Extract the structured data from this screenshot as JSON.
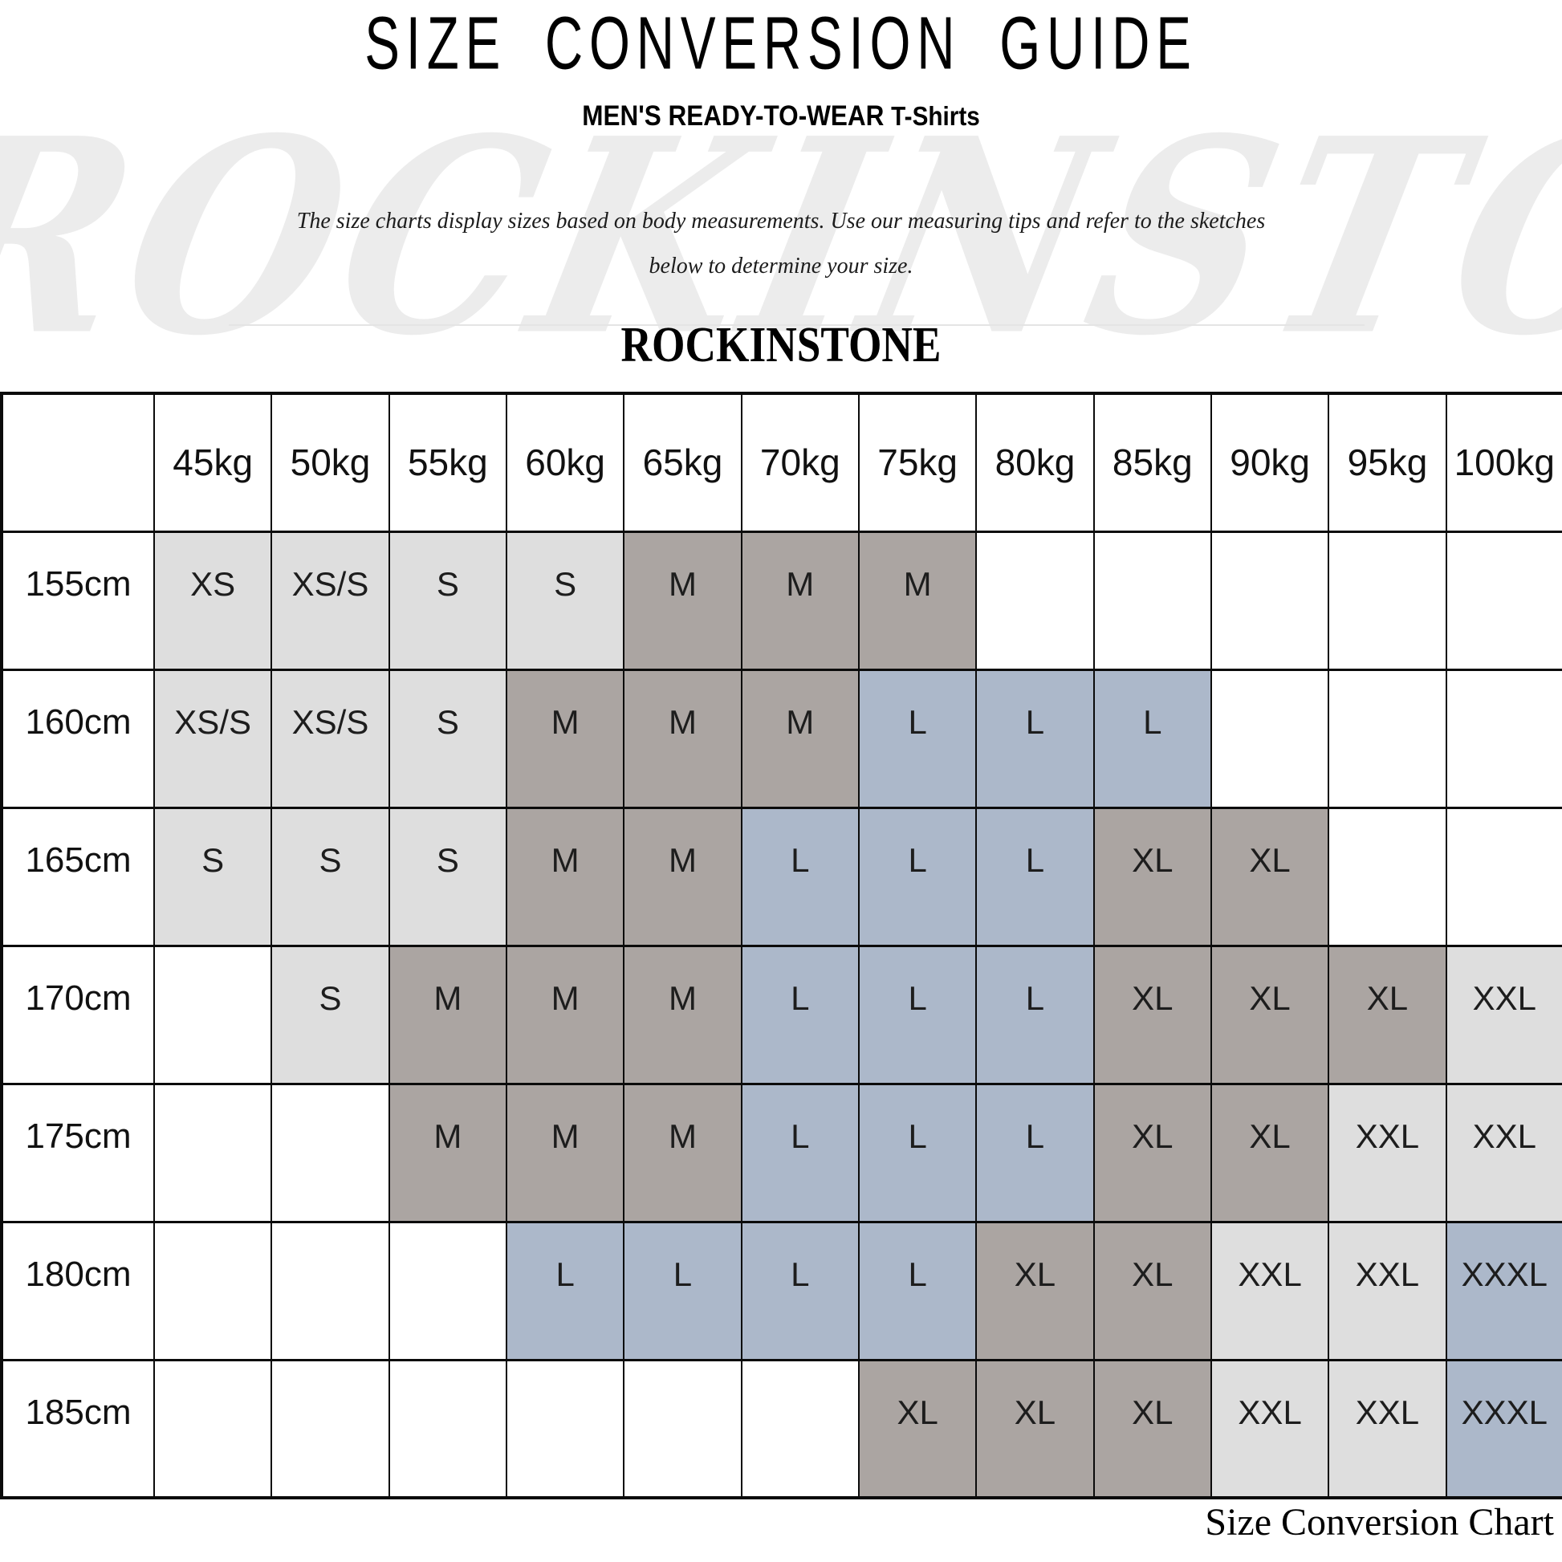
{
  "title": "SIZE CONVERSION GUIDE",
  "subtitle": {
    "category": "MEN'S READY-TO-WEAR",
    "product": "T-Shirts"
  },
  "description": {
    "line1": "The size charts display sizes based on body measurements. Use our measuring tips and refer to the sketches",
    "line2": "below to determine your size."
  },
  "brand": "ROCKINSTONE",
  "watermark": "ROCKINSTONE",
  "footer_caption": "Size Conversion Chart",
  "colors": {
    "light_gray": "#dedede",
    "warm_gray": "#aba5a2",
    "blue_gray": "#acb8ca",
    "white": "#ffffff",
    "diagonal_line": "#a3592f"
  },
  "table": {
    "weight_headers": [
      "45kg",
      "50kg",
      "55kg",
      "60kg",
      "65kg",
      "70kg",
      "75kg",
      "80kg",
      "85kg",
      "90kg",
      "95kg",
      "100kg"
    ],
    "rows": [
      {
        "height": "155cm",
        "cells": [
          {
            "size": "XS",
            "fill": "light_gray"
          },
          {
            "size": "XS/S",
            "fill": "light_gray"
          },
          {
            "size": "S",
            "fill": "light_gray"
          },
          {
            "size": "S",
            "fill": "light_gray"
          },
          {
            "size": "M",
            "fill": "warm_gray"
          },
          {
            "size": "M",
            "fill": "warm_gray"
          },
          {
            "size": "M",
            "fill": "warm_gray"
          },
          {
            "size": "",
            "fill": "white"
          },
          {
            "size": "",
            "fill": "white"
          },
          {
            "size": "",
            "fill": "white"
          },
          {
            "size": "",
            "fill": "white"
          },
          {
            "size": "",
            "fill": "white"
          }
        ]
      },
      {
        "height": "160cm",
        "cells": [
          {
            "size": "XS/S",
            "fill": "light_gray"
          },
          {
            "size": "XS/S",
            "fill": "light_gray"
          },
          {
            "size": "S",
            "fill": "light_gray"
          },
          {
            "size": "M",
            "fill": "warm_gray"
          },
          {
            "size": "M",
            "fill": "warm_gray"
          },
          {
            "size": "M",
            "fill": "warm_gray"
          },
          {
            "size": "L",
            "fill": "blue_gray"
          },
          {
            "size": "L",
            "fill": "blue_gray"
          },
          {
            "size": "L",
            "fill": "blue_gray"
          },
          {
            "size": "",
            "fill": "white"
          },
          {
            "size": "",
            "fill": "white"
          },
          {
            "size": "",
            "fill": "white"
          }
        ]
      },
      {
        "height": "165cm",
        "cells": [
          {
            "size": "S",
            "fill": "light_gray"
          },
          {
            "size": "S",
            "fill": "light_gray"
          },
          {
            "size": "S",
            "fill": "light_gray"
          },
          {
            "size": "M",
            "fill": "warm_gray"
          },
          {
            "size": "M",
            "fill": "warm_gray"
          },
          {
            "size": "L",
            "fill": "blue_gray"
          },
          {
            "size": "L",
            "fill": "blue_gray"
          },
          {
            "size": "L",
            "fill": "blue_gray"
          },
          {
            "size": "XL",
            "fill": "warm_gray"
          },
          {
            "size": "XL",
            "fill": "warm_gray"
          },
          {
            "size": "",
            "fill": "white"
          },
          {
            "size": "",
            "fill": "white"
          }
        ]
      },
      {
        "height": "170cm",
        "cells": [
          {
            "size": "",
            "fill": "white"
          },
          {
            "size": "S",
            "fill": "light_gray"
          },
          {
            "size": "M",
            "fill": "warm_gray"
          },
          {
            "size": "M",
            "fill": "warm_gray"
          },
          {
            "size": "M",
            "fill": "warm_gray"
          },
          {
            "size": "L",
            "fill": "blue_gray"
          },
          {
            "size": "L",
            "fill": "blue_gray"
          },
          {
            "size": "L",
            "fill": "blue_gray"
          },
          {
            "size": "XL",
            "fill": "warm_gray"
          },
          {
            "size": "XL",
            "fill": "warm_gray"
          },
          {
            "size": "XL",
            "fill": "warm_gray"
          },
          {
            "size": "XXL",
            "fill": "light_gray"
          }
        ]
      },
      {
        "height": "175cm",
        "cells": [
          {
            "size": "",
            "fill": "white"
          },
          {
            "size": "",
            "fill": "white"
          },
          {
            "size": "M",
            "fill": "warm_gray"
          },
          {
            "size": "M",
            "fill": "warm_gray"
          },
          {
            "size": "M",
            "fill": "warm_gray"
          },
          {
            "size": "L",
            "fill": "blue_gray"
          },
          {
            "size": "L",
            "fill": "blue_gray"
          },
          {
            "size": "L",
            "fill": "blue_gray"
          },
          {
            "size": "XL",
            "fill": "warm_gray"
          },
          {
            "size": "XL",
            "fill": "warm_gray"
          },
          {
            "size": "XXL",
            "fill": "light_gray"
          },
          {
            "size": "XXL",
            "fill": "light_gray"
          }
        ]
      },
      {
        "height": "180cm",
        "cells": [
          {
            "size": "",
            "fill": "white"
          },
          {
            "size": "",
            "fill": "white"
          },
          {
            "size": "",
            "fill": "white"
          },
          {
            "size": "L",
            "fill": "blue_gray"
          },
          {
            "size": "L",
            "fill": "blue_gray"
          },
          {
            "size": "L",
            "fill": "blue_gray"
          },
          {
            "size": "L",
            "fill": "blue_gray"
          },
          {
            "size": "XL",
            "fill": "warm_gray"
          },
          {
            "size": "XL",
            "fill": "warm_gray"
          },
          {
            "size": "XXL",
            "fill": "light_gray"
          },
          {
            "size": "XXL",
            "fill": "light_gray"
          },
          {
            "size": "XXXL",
            "fill": "blue_gray"
          }
        ]
      },
      {
        "height": "185cm",
        "cells": [
          {
            "size": "",
            "fill": "white"
          },
          {
            "size": "",
            "fill": "white"
          },
          {
            "size": "",
            "fill": "white"
          },
          {
            "size": "",
            "fill": "white"
          },
          {
            "size": "",
            "fill": "white"
          },
          {
            "size": "",
            "fill": "white"
          },
          {
            "size": "XL",
            "fill": "warm_gray"
          },
          {
            "size": "XL",
            "fill": "warm_gray"
          },
          {
            "size": "XL",
            "fill": "warm_gray"
          },
          {
            "size": "XXL",
            "fill": "light_gray"
          },
          {
            "size": "XXL",
            "fill": "light_gray"
          },
          {
            "size": "XXXL",
            "fill": "blue_gray"
          }
        ]
      }
    ]
  }
}
